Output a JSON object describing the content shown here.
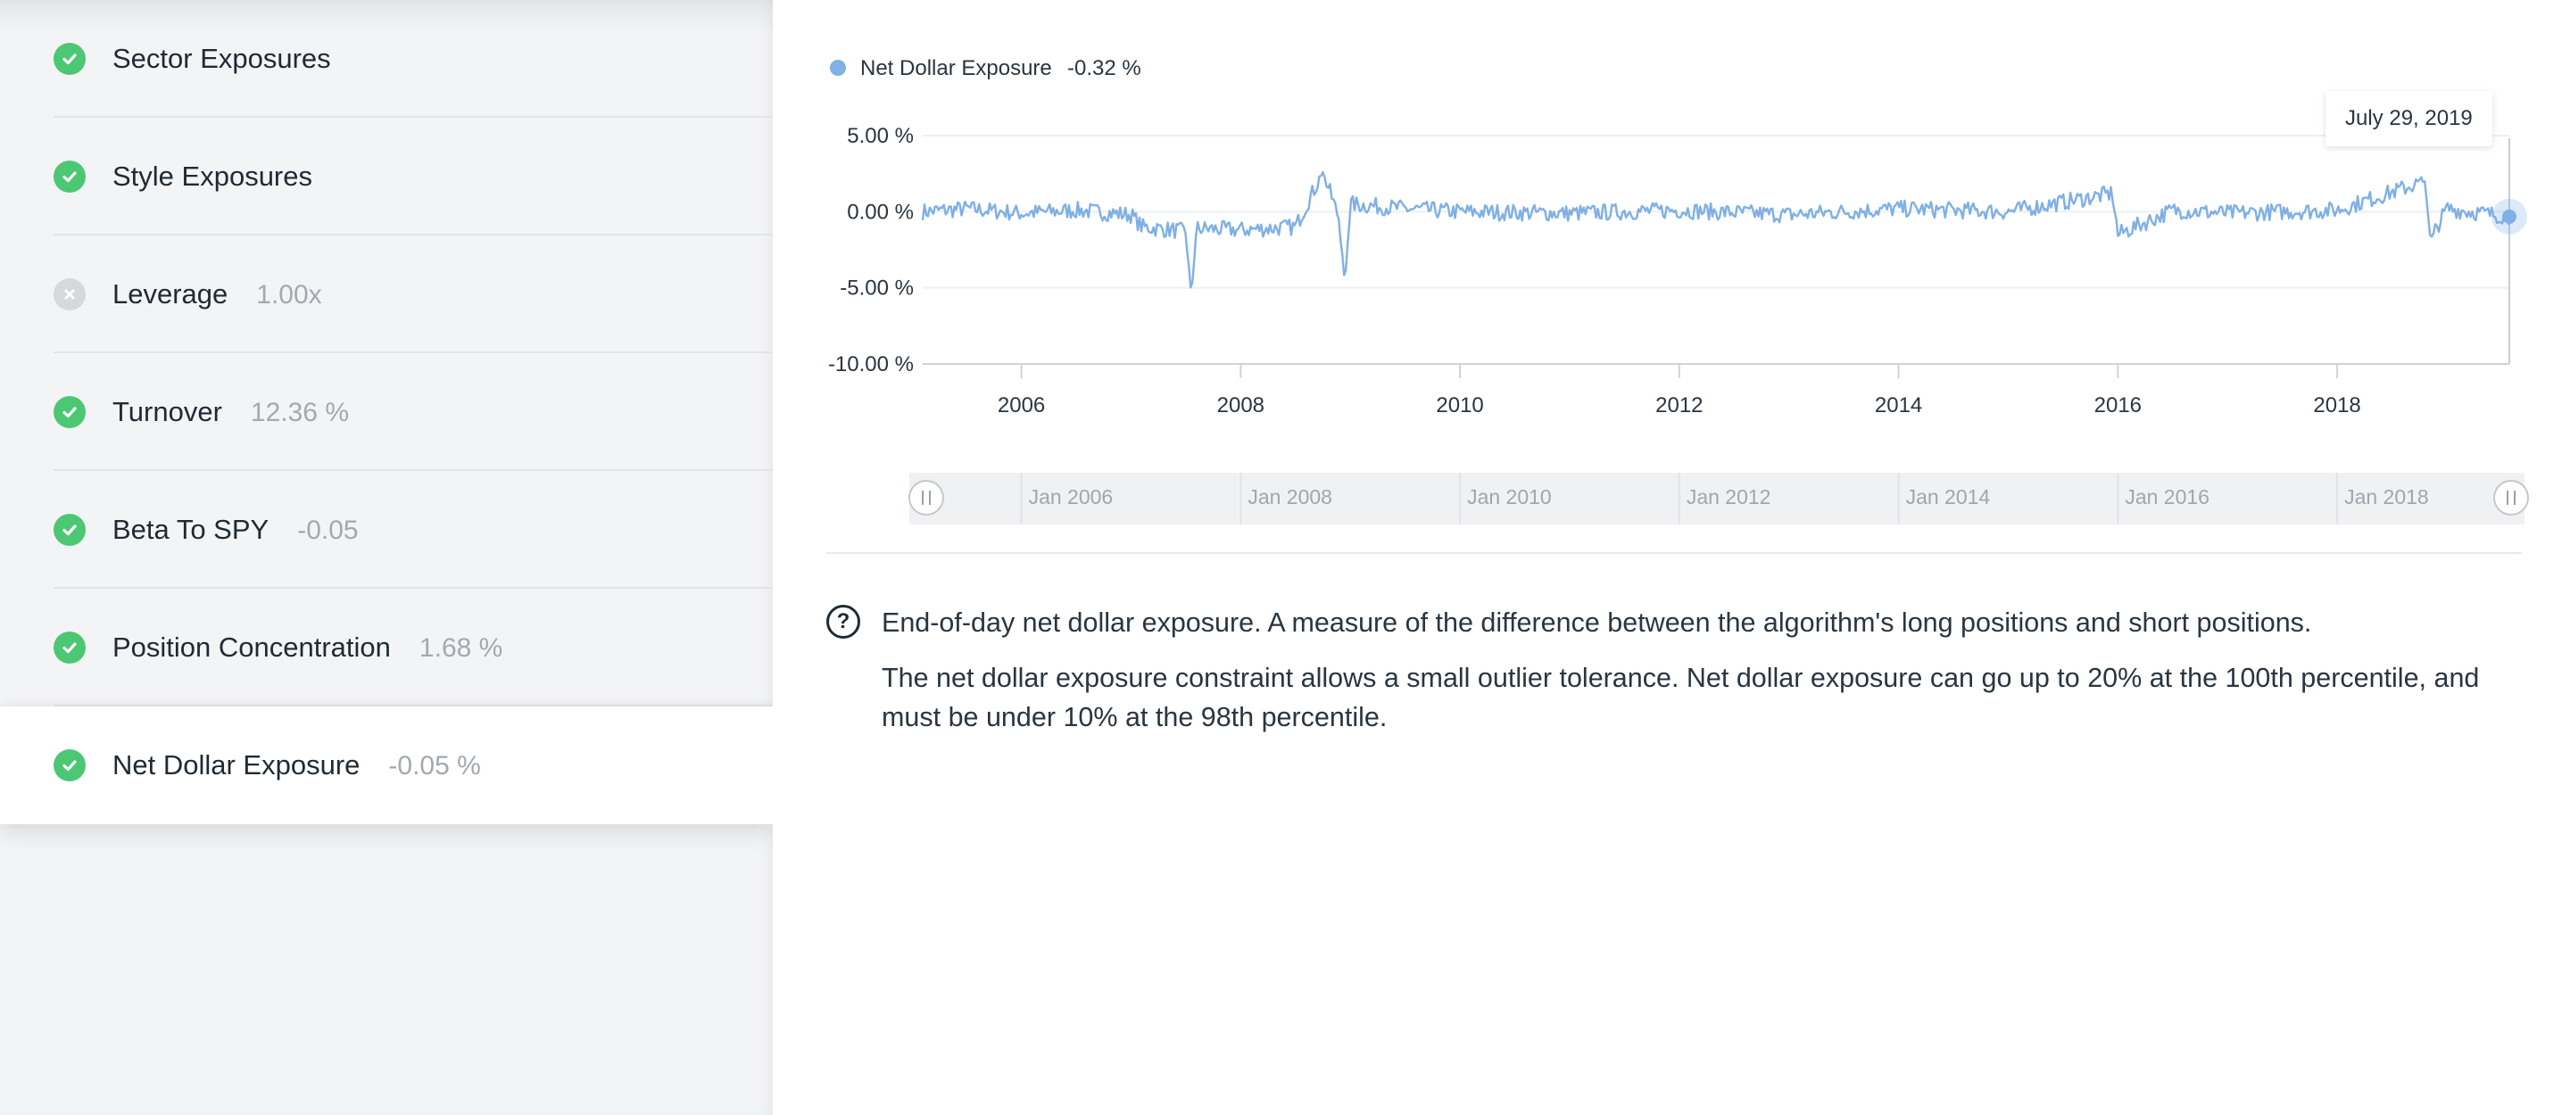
{
  "sidebar": {
    "items": [
      {
        "name": "Sector Exposures",
        "value": "",
        "status": "pass",
        "active": false
      },
      {
        "name": "Style Exposures",
        "value": "",
        "status": "pass",
        "active": false
      },
      {
        "name": "Leverage",
        "value": "1.00x",
        "status": "fail",
        "active": false
      },
      {
        "name": "Turnover",
        "value": "12.36 %",
        "status": "pass",
        "active": false
      },
      {
        "name": "Beta To SPY",
        "value": "-0.05",
        "status": "pass",
        "active": false
      },
      {
        "name": "Position Concentration",
        "value": "1.68 %",
        "status": "pass",
        "active": false
      },
      {
        "name": "Net Dollar Exposure",
        "value": "-0.05 %",
        "status": "pass",
        "active": true
      }
    ]
  },
  "colors": {
    "series": "#7fb0e6",
    "pass": "#4cc774",
    "fail": "#d6d8db",
    "muted_text": "#a3a9b0"
  },
  "tooltip": {
    "date": "July 29, 2019"
  },
  "description": {
    "icon": "help-circle-icon",
    "line1": "End-of-day net dollar exposure. A measure of the difference between the algorithm's long positions and short positions.",
    "line2": "The net dollar exposure constraint allows a small outlier tolerance. Net dollar exposure can go up to 20% at the 100th percentile, and must be under 10% at the 98th percentile."
  },
  "chart_data": {
    "type": "line",
    "legend": {
      "name": "Net Dollar Exposure",
      "value": "-0.32 %",
      "placement": "top-left"
    },
    "ylim": [
      -10,
      5
    ],
    "y_ticks": [
      "5.00 %",
      "0.00 %",
      "-5.00 %",
      "-10.00 %"
    ],
    "xlim": [
      2005.1,
      2019.57
    ],
    "x_ticks": [
      "2006",
      "2008",
      "2010",
      "2012",
      "2014",
      "2016",
      "2018"
    ],
    "grid": true,
    "navigator": {
      "labels": [
        "Jan 2006",
        "Jan 2008",
        "Jan 2010",
        "Jan 2012",
        "Jan 2014",
        "Jan 2016",
        "Jan 2018"
      ]
    },
    "series": [
      {
        "name": "Net Dollar Exposure",
        "points": [
          [
            2005.1,
            0.0
          ],
          [
            2005.5,
            0.2
          ],
          [
            2006.0,
            -0.1
          ],
          [
            2006.5,
            0.1
          ],
          [
            2007.0,
            -0.2
          ],
          [
            2007.1,
            -1.0
          ],
          [
            2007.5,
            -1.3
          ],
          [
            2007.55,
            -5.5
          ],
          [
            2007.6,
            -1.1
          ],
          [
            2008.0,
            -1.2
          ],
          [
            2008.5,
            -1.0
          ],
          [
            2008.75,
            2.6
          ],
          [
            2008.9,
            -0.5
          ],
          [
            2008.95,
            -4.8
          ],
          [
            2009.0,
            0.5
          ],
          [
            2009.5,
            0.2
          ],
          [
            2010.0,
            0.0
          ],
          [
            2011.0,
            -0.1
          ],
          [
            2012.0,
            0.1
          ],
          [
            2013.0,
            -0.2
          ],
          [
            2014.0,
            0.2
          ],
          [
            2015.0,
            0.0
          ],
          [
            2015.95,
            1.2
          ],
          [
            2016.0,
            -1.5
          ],
          [
            2016.5,
            0.1
          ],
          [
            2017.0,
            -0.1
          ],
          [
            2018.0,
            0.1
          ],
          [
            2018.8,
            2.0
          ],
          [
            2018.85,
            -1.8
          ],
          [
            2019.0,
            0.2
          ],
          [
            2019.57,
            -0.32
          ]
        ]
      }
    ]
  }
}
